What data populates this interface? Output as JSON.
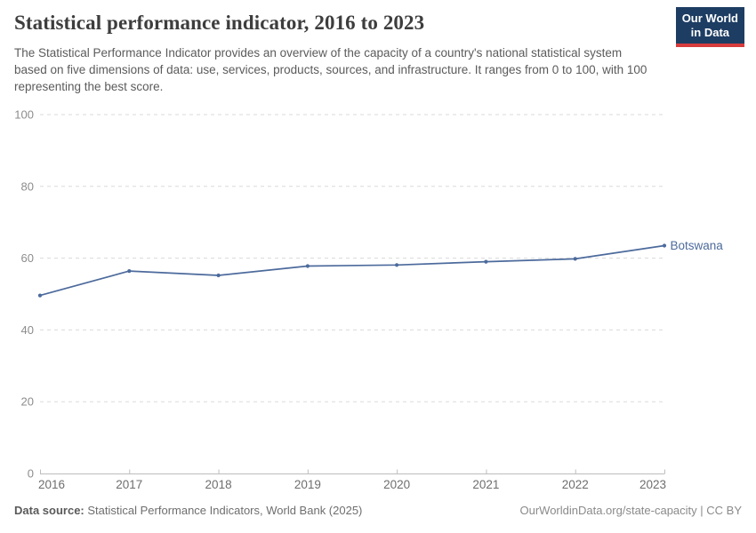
{
  "header": {
    "title": "Statistical performance indicator, 2016 to 2023",
    "subtitle": "The Statistical Performance Indicator provides an overview of the capacity of a country's national statistical system based on five dimensions of data: use, services, products, sources, and infrastructure. It ranges from 0 to 100, with 100 representing the best score.",
    "logo": {
      "line1": "Our World",
      "line2": "in Data",
      "bg_color": "#1d3d63",
      "stripe_color": "#d73c3c"
    }
  },
  "chart_data": {
    "type": "line",
    "title": "Statistical performance indicator, 2016 to 2023",
    "x": [
      2016,
      2017,
      2018,
      2019,
      2020,
      2021,
      2022,
      2023
    ],
    "series": [
      {
        "name": "Botswana",
        "color": "#4c6a9c",
        "values": [
          49.6,
          56.4,
          55.2,
          57.8,
          58.1,
          59.0,
          59.8,
          63.5
        ]
      }
    ],
    "xlabel": "",
    "ylabel": "",
    "ylim": [
      0,
      100
    ],
    "yticks": [
      0,
      20,
      40,
      60,
      80,
      100
    ],
    "grid": "horizontal-dashed",
    "legend": "end-of-line-label",
    "markers": true,
    "colors": {
      "gridline": "#dadada",
      "axis": "#bdbdbd",
      "y_tick_label": "#8c8c8c",
      "x_tick_label": "#6e6e6e"
    }
  },
  "footer": {
    "datasource_label": "Data source:",
    "datasource_text": "Statistical Performance Indicators, World Bank (2025)",
    "credit": "OurWorldinData.org/state-capacity | CC BY"
  }
}
